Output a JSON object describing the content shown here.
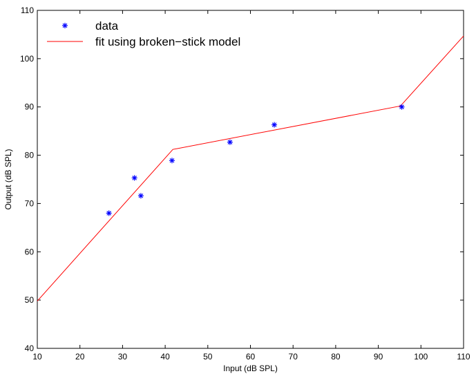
{
  "chart_data": {
    "type": "scatter",
    "title": "",
    "xlabel": "Input (dB SPL)",
    "ylabel": "Output (dB SPL)",
    "xlim": [
      10,
      110
    ],
    "ylim": [
      40,
      110
    ],
    "xticks": [
      "10",
      "20",
      "30",
      "40",
      "50",
      "60",
      "70",
      "80",
      "90",
      "100",
      "110"
    ],
    "yticks": [
      "40",
      "50",
      "60",
      "70",
      "80",
      "90",
      "100",
      "110"
    ],
    "grid": false,
    "legend_position": "top-left",
    "series": [
      {
        "name": "data",
        "kind": "scatter",
        "marker": "*",
        "color": "#0000ff",
        "points": [
          {
            "x": 26.8,
            "y": 68.0
          },
          {
            "x": 32.8,
            "y": 75.3
          },
          {
            "x": 34.3,
            "y": 71.6
          },
          {
            "x": 41.6,
            "y": 78.9
          },
          {
            "x": 55.2,
            "y": 82.7
          },
          {
            "x": 65.6,
            "y": 86.3
          },
          {
            "x": 95.5,
            "y": 90.0
          }
        ]
      },
      {
        "name": "fit using broken−stick model",
        "kind": "line",
        "color": "#ff0000",
        "points": [
          {
            "x": 10,
            "y": 49.8
          },
          {
            "x": 41.8,
            "y": 81.2
          },
          {
            "x": 95.2,
            "y": 90.2
          },
          {
            "x": 110,
            "y": 104.7
          }
        ]
      }
    ]
  }
}
